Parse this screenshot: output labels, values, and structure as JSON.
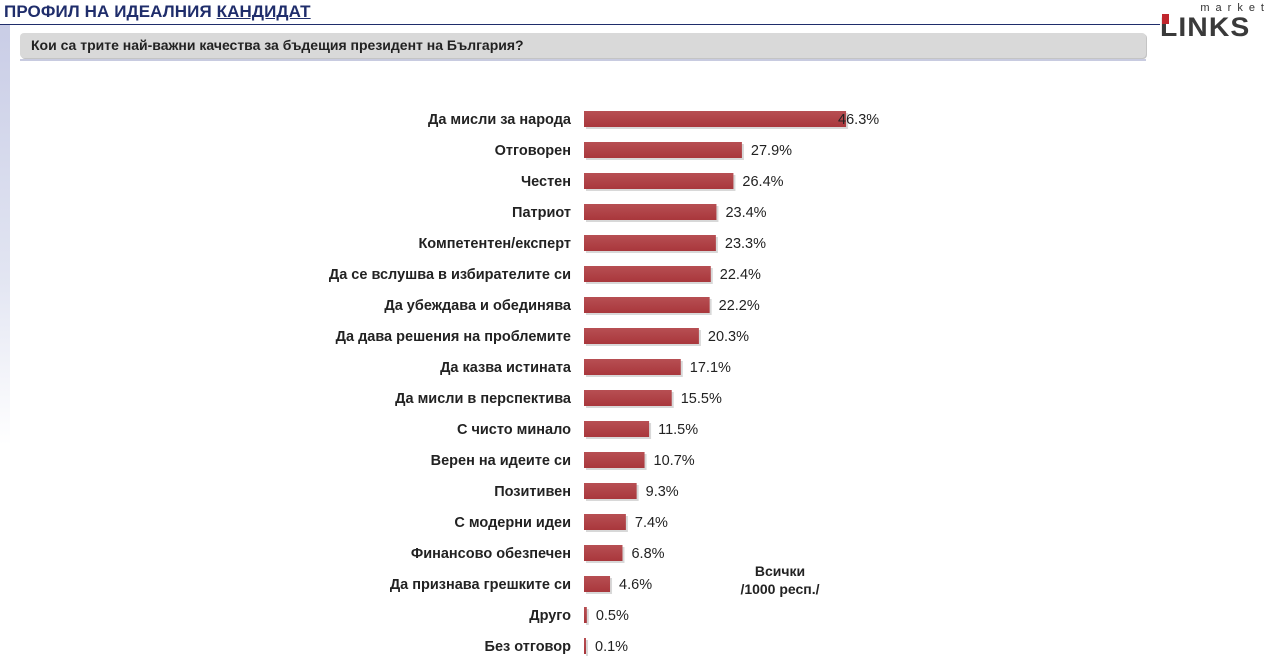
{
  "header": {
    "title_part1": "ПРОФИЛ НА ИДЕАЛНИЯ ",
    "title_part2": "КАНДИДАТ",
    "question": "Кои са трите най-важни качества за бъдещия президент на България?"
  },
  "logo": {
    "small_text": "market",
    "big_text": "LINKS"
  },
  "note": {
    "line1": "Всички",
    "line2": "/1000 респ./"
  },
  "colors": {
    "bar": "#a9373c",
    "bar_top": "#b74f53",
    "title": "#1f2d6b"
  },
  "chart_data": {
    "type": "bar",
    "orientation": "horizontal",
    "categories": [
      "Да мисли за народа",
      "Отговорен",
      "Честен",
      "Патриот",
      "Компетентен/експерт",
      "Да се вслушва в избирателите си",
      "Да убеждава и обединява",
      "Да дава решения на проблемите",
      "Да казва истината",
      "Да мисли в перспектива",
      "С чисто минало",
      "Верен на идеите си",
      "Позитивен",
      "С модерни идеи",
      "Финансово обезпечен",
      "Да признава грешките си",
      "Друго",
      "Без отговор"
    ],
    "values": [
      46.3,
      27.9,
      26.4,
      23.4,
      23.3,
      22.4,
      22.2,
      20.3,
      17.1,
      15.5,
      11.5,
      10.7,
      9.3,
      7.4,
      6.8,
      4.6,
      0.5,
      0.1
    ],
    "value_labels": [
      "46.3%",
      "27.9%",
      "26.4%",
      "23.4%",
      "23.3%",
      "22.4%",
      "22.2%",
      "20.3%",
      "17.1%",
      "15.5%",
      "11.5%",
      "10.7%",
      "9.3%",
      "7.4%",
      "6.8%",
      "4.6%",
      "0.5%",
      "0.1%"
    ],
    "grid": false,
    "legend": false
  }
}
